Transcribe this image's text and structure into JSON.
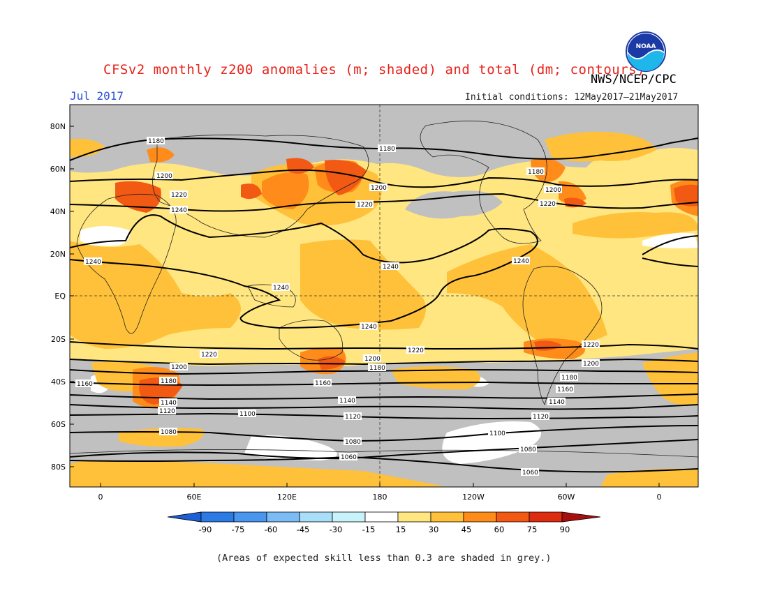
{
  "title": "CFSv2 monthly z200 anomalies (m; shaded) and total (dm; contours)",
  "date_label": "Jul 2017",
  "agency": "NWS/NCEP/CPC",
  "initial_conditions": "Initial conditions: 12May2017–21May2017",
  "logo_text": "NOAA",
  "footnote": "(Areas of expected skill less than 0.3 are shaded in grey.)",
  "map": {
    "lat_labels": [
      "80N",
      "60N",
      "40N",
      "20N",
      "EQ",
      "20S",
      "40S",
      "60S",
      "80S"
    ],
    "lon_labels": [
      "0",
      "60E",
      "120E",
      "180",
      "120W",
      "60W",
      "0"
    ],
    "contour_labels": [
      "1180",
      "1200",
      "1220",
      "1240",
      "1160",
      "1140",
      "1120",
      "1100",
      "1080",
      "1060"
    ],
    "colors": {
      "skill_grey": "#c0c0c0",
      "yellow_15_30": "#ffe680",
      "light_orange_30_45": "#ffc13a",
      "orange_45_60": "#ff8c1a",
      "red_orange_60_75": "#f25a14",
      "white_neutral": "#ffffff"
    }
  },
  "colorbar": {
    "ticks": [
      "-90",
      "-75",
      "-60",
      "-45",
      "-30",
      "-15",
      "15",
      "30",
      "45",
      "60",
      "75",
      "90"
    ],
    "colors": [
      "#1c5ed6",
      "#2c7be5",
      "#4a96ee",
      "#7bbcf4",
      "#a8def8",
      "#c8f3fb",
      "#ffffff",
      "#ffe680",
      "#ffc13a",
      "#ff8c1a",
      "#f25a14",
      "#de2c10",
      "#a80e0e"
    ]
  }
}
